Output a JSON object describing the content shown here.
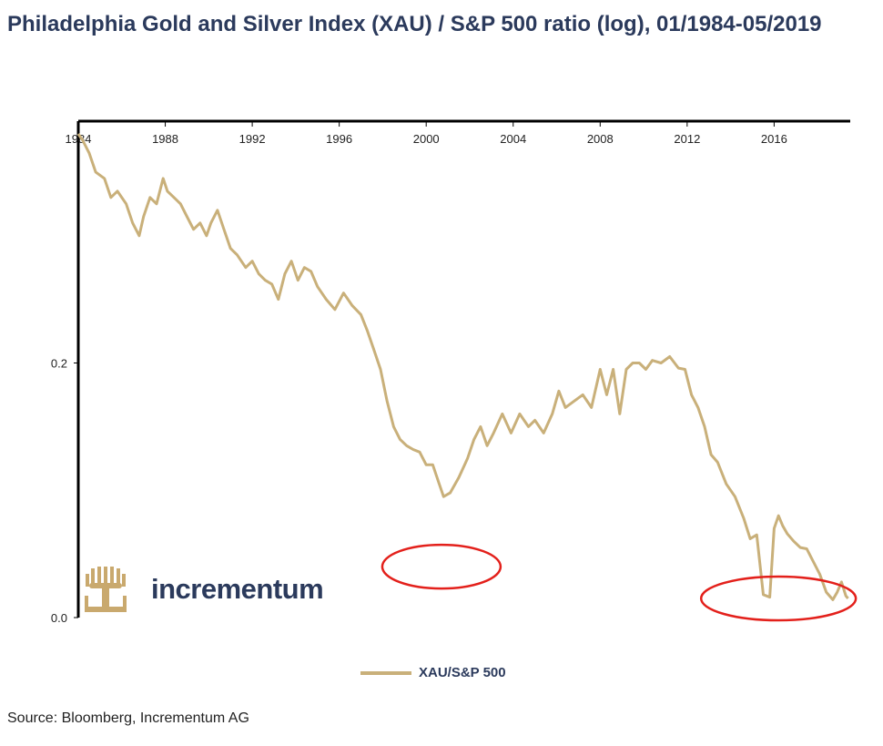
{
  "title": "Philadelphia Gold and Silver Index (XAU) / S&P 500 ratio (log), 01/1984-05/2019",
  "source": "Source: Bloomberg, Incrementum AG",
  "logo_text": "incrementum",
  "colors": {
    "series": "#c9b07a",
    "annotation": "#e3201b",
    "title": "#2b3a5c",
    "logo_gold": "#c9a96e"
  },
  "icons": {
    "logo": "tree-logo-icon"
  },
  "chart_data": {
    "type": "line",
    "title": "Philadelphia Gold and Silver Index (XAU) / S&P 500 ratio (log), 01/1984-05/2019",
    "xlabel": "",
    "ylabel": "",
    "x_tick_labels": [
      "1984",
      "1988",
      "1992",
      "1996",
      "2000",
      "2004",
      "2008",
      "2012",
      "2016"
    ],
    "x_ticks": [
      1984,
      1988,
      1992,
      1996,
      2000,
      2004,
      2008,
      2012,
      2016
    ],
    "y_tick_labels": [
      "0.0",
      "0.2"
    ],
    "y_ticks": [
      0.0,
      0.2
    ],
    "xlim": [
      1984,
      2019.5
    ],
    "ylim": [
      0.0,
      0.39
    ],
    "x_axis_position": "top",
    "grid": false,
    "legend": "bottom-center",
    "series": [
      {
        "name": "XAU/S&P 500",
        "x": [
          1984.0,
          1984.2,
          1984.5,
          1984.8,
          1985.2,
          1985.5,
          1985.8,
          1986.2,
          1986.5,
          1986.8,
          1987.0,
          1987.3,
          1987.6,
          1987.9,
          1988.1,
          1988.4,
          1988.7,
          1989.0,
          1989.3,
          1989.6,
          1989.9,
          1990.1,
          1990.4,
          1990.7,
          1991.0,
          1991.3,
          1991.7,
          1992.0,
          1992.3,
          1992.6,
          1992.9,
          1993.2,
          1993.5,
          1993.8,
          1994.1,
          1994.4,
          1994.7,
          1995.0,
          1995.4,
          1995.8,
          1996.2,
          1996.6,
          1997.0,
          1997.3,
          1997.6,
          1997.9,
          1998.2,
          1998.5,
          1998.8,
          1999.1,
          1999.4,
          1999.7,
          2000.0,
          2000.3,
          2000.6,
          2000.8,
          2001.1,
          2001.5,
          2001.9,
          2002.2,
          2002.5,
          2002.8,
          2003.1,
          2003.5,
          2003.9,
          2004.3,
          2004.7,
          2005.0,
          2005.4,
          2005.8,
          2006.1,
          2006.4,
          2006.8,
          2007.2,
          2007.6,
          2008.0,
          2008.3,
          2008.6,
          2008.9,
          2009.2,
          2009.5,
          2009.8,
          2010.1,
          2010.4,
          2010.8,
          2011.2,
          2011.6,
          2011.9,
          2012.2,
          2012.5,
          2012.8,
          2013.1,
          2013.4,
          2013.8,
          2014.2,
          2014.6,
          2014.9,
          2015.2,
          2015.5,
          2015.8,
          2016.0,
          2016.2,
          2016.4,
          2016.6,
          2016.9,
          2017.2,
          2017.5,
          2017.8,
          2018.1,
          2018.4,
          2018.7,
          2018.9,
          2019.1,
          2019.3,
          2019.4
        ],
        "y": [
          0.38,
          0.375,
          0.365,
          0.35,
          0.345,
          0.33,
          0.335,
          0.325,
          0.31,
          0.3,
          0.315,
          0.33,
          0.325,
          0.345,
          0.335,
          0.33,
          0.325,
          0.315,
          0.305,
          0.31,
          0.3,
          0.31,
          0.32,
          0.305,
          0.29,
          0.285,
          0.275,
          0.28,
          0.27,
          0.265,
          0.262,
          0.25,
          0.27,
          0.28,
          0.265,
          0.275,
          0.272,
          0.26,
          0.25,
          0.242,
          0.255,
          0.245,
          0.238,
          0.225,
          0.21,
          0.195,
          0.17,
          0.15,
          0.14,
          0.135,
          0.132,
          0.13,
          0.12,
          0.12,
          0.105,
          0.095,
          0.098,
          0.11,
          0.125,
          0.14,
          0.15,
          0.135,
          0.145,
          0.16,
          0.145,
          0.16,
          0.15,
          0.155,
          0.145,
          0.16,
          0.178,
          0.165,
          0.17,
          0.175,
          0.165,
          0.195,
          0.175,
          0.195,
          0.16,
          0.195,
          0.2,
          0.2,
          0.195,
          0.202,
          0.2,
          0.205,
          0.196,
          0.195,
          0.175,
          0.165,
          0.15,
          0.128,
          0.122,
          0.105,
          0.095,
          0.078,
          0.062,
          0.065,
          0.018,
          0.016,
          0.07,
          0.08,
          0.072,
          0.066,
          0.06,
          0.055,
          0.054,
          0.044,
          0.034,
          0.02,
          0.014,
          0.02,
          0.028,
          0.017,
          0.015
        ]
      }
    ],
    "annotations": [
      {
        "type": "ellipse",
        "x": 2000.7,
        "y": 0.04,
        "note": ""
      },
      {
        "type": "ellipse",
        "x": 2016.2,
        "y": 0.015,
        "note": ""
      }
    ]
  }
}
